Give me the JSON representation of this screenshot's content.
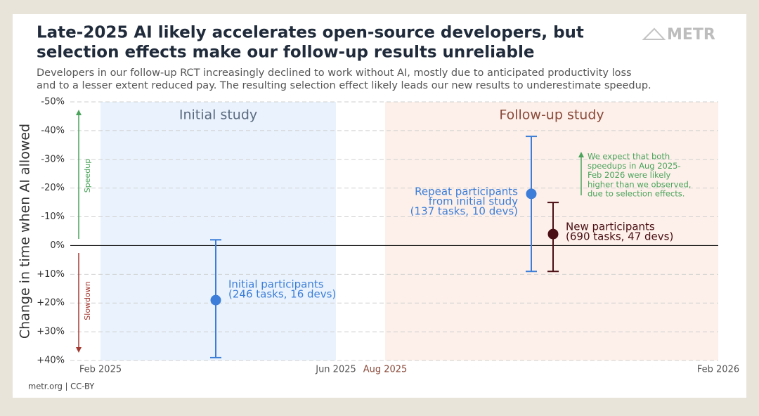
{
  "chart_data": {
    "type": "errorbar",
    "title": [
      "Late-2025 AI likely accelerates open-source developers, but",
      "selection effects make our follow-up results unreliable"
    ],
    "subtitle": [
      "Developers in our follow-up RCT increasingly declined to work without AI, mostly due to anticipated productivity loss",
      "and to a lesser extent reduced pay. The resulting selection effect likely leads our new results to underestimate speedup."
    ],
    "logo": "METR",
    "y_label": "Change in time when AI allowed",
    "ylim": [
      -50,
      40
    ],
    "yticks": [
      {
        "value": -50,
        "label": "-50%"
      },
      {
        "value": -40,
        "label": "-40%"
      },
      {
        "value": -30,
        "label": "-30%"
      },
      {
        "value": -20,
        "label": "-20%"
      },
      {
        "value": -10,
        "label": "-10%"
      },
      {
        "value": 0,
        "label": "0%"
      },
      {
        "value": 10,
        "label": "+10%"
      },
      {
        "value": 20,
        "label": "+20%"
      },
      {
        "value": 30,
        "label": "+30%"
      },
      {
        "value": 40,
        "label": "+40%"
      }
    ],
    "x_labels": [
      "Feb 2025",
      "Jun 2025",
      "Aug 2025",
      "Feb 2026"
    ],
    "regions": [
      {
        "name": "Initial study",
        "color": "#eaf3fd"
      },
      {
        "name": "Follow-up study",
        "color": "#fdf0ea"
      }
    ],
    "series": [
      {
        "name": [
          "Initial participants",
          "(246 tasks, 16 devs)"
        ],
        "color": "#3b7dd8",
        "value": 19,
        "low": -2,
        "high": 39
      },
      {
        "name": [
          "Repeat participants",
          "from initial study",
          "(137 tasks, 10 devs)"
        ],
        "color": "#3b7dd8",
        "value": -18,
        "low": -38,
        "high": 9
      },
      {
        "name": [
          "New participants",
          "(690 tasks, 47 devs)"
        ],
        "color": "#4a0f14",
        "value": -4,
        "low": -15,
        "high": 9
      }
    ],
    "speed_labels": [
      "Speedup",
      "Slowdown"
    ],
    "annotation": [
      "We expect that both",
      "speedups in Aug 2025-",
      "Feb 2026 were likely",
      "higher than we observed,",
      "due to selection effects."
    ],
    "source": "metr.org  |  CC-BY"
  }
}
